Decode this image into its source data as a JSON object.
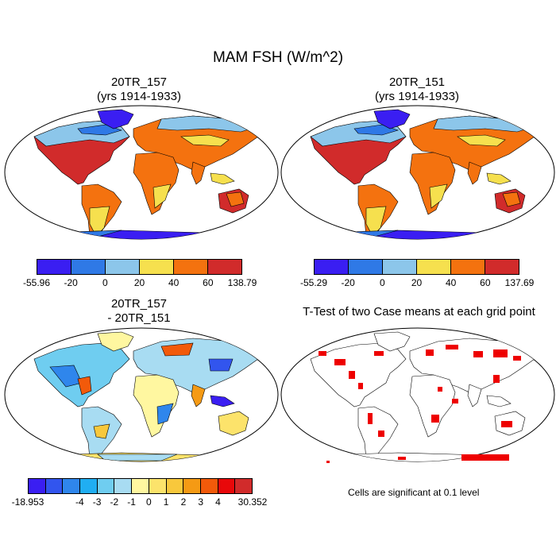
{
  "title": "MAM FSH (W/m^2)",
  "panels": [
    {
      "title_line1": "20TR_157",
      "title_line2": "(yrs 1914-1933)"
    },
    {
      "title_line1": "20TR_151",
      "title_line2": "(yrs 1914-1933)"
    },
    {
      "title_line1": "20TR_157",
      "title_line2": "- 20TR_151"
    },
    {
      "title_line1": "T-Test of two Case means at each grid point",
      "title_line2": ""
    }
  ],
  "colorbars": [
    {
      "colors": [
        "#3a1ef2",
        "#2f79e6",
        "#8cc6ea",
        "#f6e04e",
        "#f4720f",
        "#d12b2b"
      ],
      "labels": [
        "-55.96",
        "-20",
        "0",
        "20",
        "40",
        "60",
        "138.79"
      ]
    },
    {
      "colors": [
        "#3a1ef2",
        "#2f79e6",
        "#8cc6ea",
        "#f6e04e",
        "#f4720f",
        "#d12b2b"
      ],
      "labels": [
        "-55.29",
        "-20",
        "0",
        "20",
        "40",
        "60",
        "137.69"
      ]
    },
    {
      "colors": [
        "#3a1ef2",
        "#3255ee",
        "#2f86ec",
        "#20aef2",
        "#6fcdf0",
        "#a8dcf2",
        "#fff7a0",
        "#fce36b",
        "#f8c83c",
        "#f59a14",
        "#f25a0a",
        "#e8080a",
        "#d12b2b"
      ],
      "labels": [
        "-18.953",
        "-4",
        "-3",
        "-2",
        "-1",
        "0",
        "1",
        "2",
        "3",
        "4",
        "30.352"
      ]
    }
  ],
  "significance_note": "Cells are significant at 0.1 level",
  "significance_color": "#ee0000"
}
